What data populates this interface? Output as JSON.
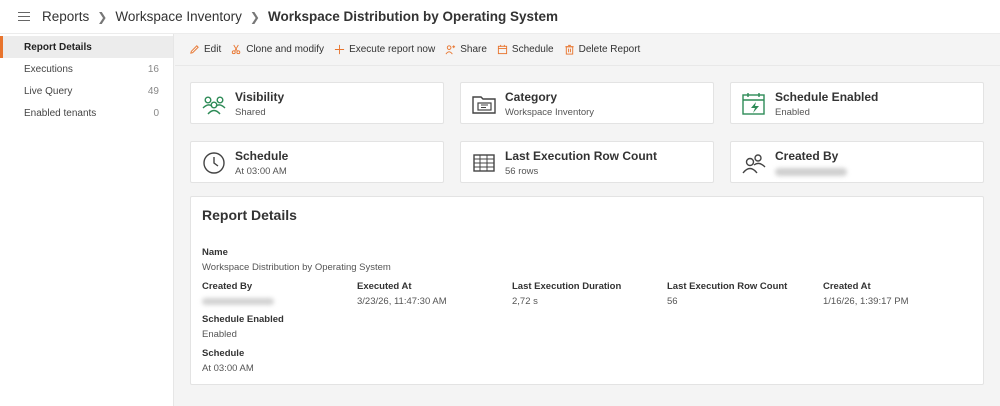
{
  "header": {
    "breadcrumb": [
      "Reports",
      "Workspace Inventory",
      "Workspace Distribution by Operating System"
    ]
  },
  "sidebar": {
    "items": [
      {
        "label": "Report Details",
        "count": ""
      },
      {
        "label": "Executions",
        "count": "16"
      },
      {
        "label": "Live Query",
        "count": "49"
      },
      {
        "label": "Enabled tenants",
        "count": "0"
      }
    ]
  },
  "toolbar": {
    "edit": "Edit",
    "clone": "Clone and modify",
    "execute": "Execute report now",
    "share": "Share",
    "schedule": "Schedule",
    "delete": "Delete Report"
  },
  "cards": {
    "visibility": {
      "title": "Visibility",
      "value": "Shared"
    },
    "category": {
      "title": "Category",
      "value": "Workspace Inventory"
    },
    "schedule_enabled": {
      "title": "Schedule Enabled",
      "value": "Enabled"
    },
    "schedule": {
      "title": "Schedule",
      "value": "At 03:00 AM"
    },
    "last_row_count": {
      "title": "Last Execution Row Count",
      "value": "56 rows"
    },
    "created_by": {
      "title": "Created By"
    }
  },
  "details": {
    "title": "Report Details",
    "name_label": "Name",
    "name_value": "Workspace Distribution by Operating System",
    "created_by_label": "Created By",
    "executed_at_label": "Executed At",
    "executed_at_value": "3/23/26, 11:47:30 AM",
    "duration_label": "Last Execution Duration",
    "duration_value": "2,72 s",
    "row_count_label": "Last Execution Row Count",
    "row_count_value": "56",
    "created_at_label": "Created At",
    "created_at_value": "1/16/26, 1:39:17 PM",
    "schedule_enabled_label": "Schedule Enabled",
    "schedule_enabled_value": "Enabled",
    "schedule_label": "Schedule",
    "schedule_value": "At 03:00 AM"
  },
  "colors": {
    "accent": "#e8742d",
    "icon_green": "#2e8b57"
  }
}
